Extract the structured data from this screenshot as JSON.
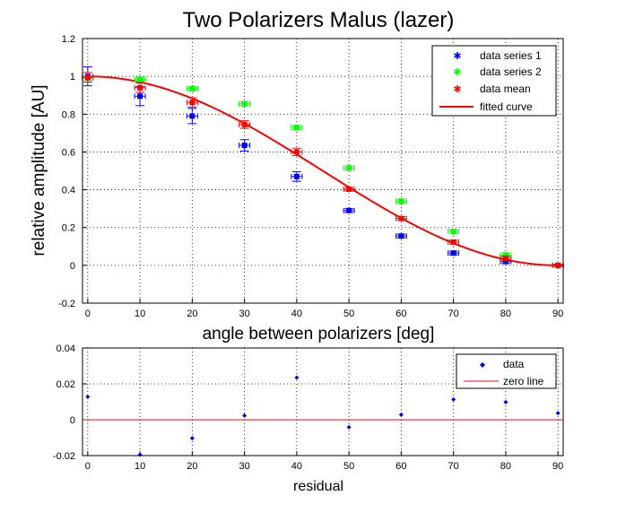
{
  "chart_data": [
    {
      "type": "scatter",
      "title": "Two Polarizers Malus (lazer)",
      "xlabel": "angle between polarizers [deg]",
      "ylabel": "relative amplitude [AU]",
      "xlim": [
        -1,
        91
      ],
      "ylim": [
        -0.2,
        1.2
      ],
      "xticks": [
        "0",
        "10",
        "20",
        "30",
        "40",
        "50",
        "60",
        "70",
        "80",
        "90"
      ],
      "yticks": [
        "-0.2",
        "0",
        "0.2",
        "0.4",
        "0.6",
        "0.8",
        "1",
        "1.2"
      ],
      "grid": true,
      "legend_position": "top-right",
      "x": [
        0,
        10,
        20,
        30,
        40,
        50,
        60,
        70,
        80,
        90
      ],
      "series": [
        {
          "name": "data series 1",
          "color": "#0000ff",
          "values": [
            1.0,
            0.895,
            0.79,
            0.635,
            0.47,
            0.29,
            0.155,
            0.065,
            0.02,
            0.0
          ],
          "yerr": [
            0.05,
            0.05,
            0.04,
            0.03,
            0.025,
            0.01,
            0.01,
            0.01,
            0.01,
            0.005
          ]
        },
        {
          "name": "data series 2",
          "color": "#00ff00",
          "values": [
            0.99,
            0.985,
            0.935,
            0.855,
            0.73,
            0.515,
            0.34,
            0.18,
            0.055,
            0.0
          ],
          "yerr": [
            0.01,
            0.01,
            0.01,
            0.01,
            0.01,
            0.01,
            0.01,
            0.01,
            0.01,
            0.005
          ]
        },
        {
          "name": "data mean",
          "color": "#ff0000",
          "values": [
            0.995,
            0.94,
            0.862,
            0.745,
            0.6,
            0.403,
            0.248,
            0.123,
            0.038,
            0.0
          ],
          "yerr": [
            0.025,
            0.025,
            0.025,
            0.02,
            0.02,
            0.01,
            0.01,
            0.01,
            0.01,
            0.005
          ]
        }
      ],
      "fitted_curve": {
        "name": "fitted curve",
        "color": "#ff0000",
        "formula": "cos^2(x)"
      }
    },
    {
      "type": "scatter",
      "xlabel": "residual",
      "xlim": [
        -1,
        91
      ],
      "ylim": [
        -0.02,
        0.04
      ],
      "xticks": [
        "0",
        "10",
        "20",
        "30",
        "40",
        "50",
        "60",
        "70",
        "80",
        "90"
      ],
      "yticks": [
        "-0.02",
        "0",
        "0.02",
        "0.04"
      ],
      "grid": true,
      "legend_position": "top-right",
      "x": [
        0,
        10,
        20,
        30,
        40,
        50,
        60,
        70,
        80,
        90
      ],
      "series": [
        {
          "name": "data",
          "color": "#0000ff",
          "values": [
            0.0128,
            -0.0195,
            -0.0103,
            0.0023,
            0.0235,
            -0.0042,
            0.0028,
            0.0113,
            0.0098,
            0.0037
          ]
        }
      ],
      "zero_line": {
        "name": "zero line",
        "color": "#ff0000"
      }
    }
  ]
}
